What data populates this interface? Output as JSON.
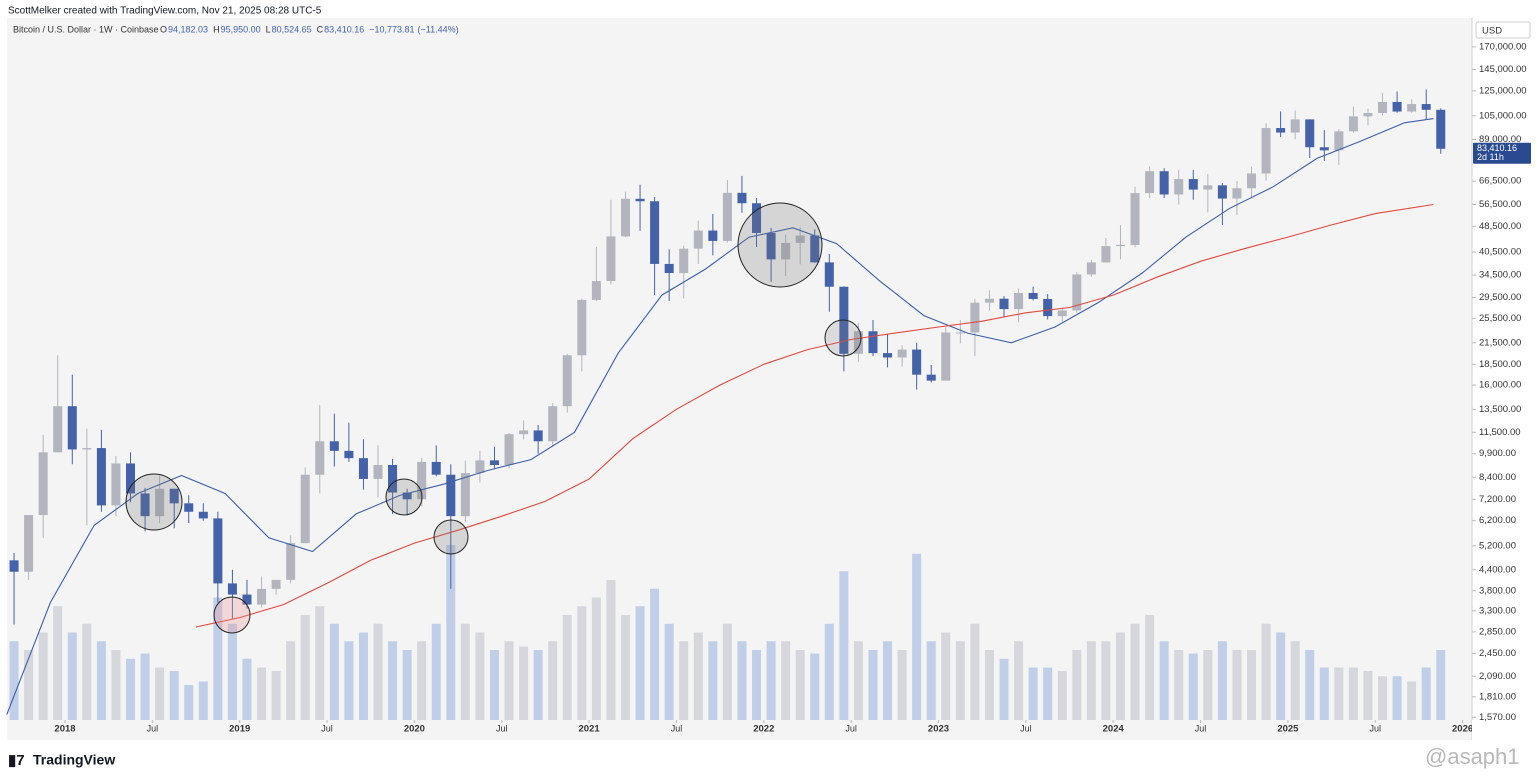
{
  "header": {
    "text": "ScottMelker created with TradingView.com, Nov 21, 2025 08:28 UTC-5"
  },
  "chart_data": {
    "type": "candlestick",
    "symbol": "Bitcoin / U.S. Dollar · 1W · Coinbase",
    "legend_ohlc": {
      "labels": [
        "O",
        "H",
        "L",
        "C"
      ],
      "values": [
        94182.03,
        95950,
        80524.65,
        83410.16
      ],
      "value_labels": [
        "94,182.03",
        "95,950.00",
        "80,524.65",
        "83,410.16"
      ]
    },
    "change": {
      "value": -10773.81,
      "label": "−10,773.81",
      "percent": -11.44,
      "percent_label": "(−11.44%)"
    },
    "currency": "USD",
    "last_price": {
      "value": 83410.16,
      "label": "83,410.16",
      "countdown": "2d 11h"
    },
    "log_scale": true,
    "up_color": "#b2b5be",
    "down_color": "#4562a8",
    "volume_up_color": "#cdd0d6",
    "volume_down_color": "#b3c5e4",
    "x": [
      "2017-09",
      "2017-10",
      "2017-11",
      "2017-12",
      "2018-01",
      "2018-02",
      "2018-03",
      "2018-04",
      "2018-05",
      "2018-06",
      "2018-07",
      "2018-08",
      "2018-09",
      "2018-10",
      "2018-11",
      "2018-12",
      "2019-01",
      "2019-02",
      "2019-03",
      "2019-04",
      "2019-05",
      "2019-06",
      "2019-07",
      "2019-08",
      "2019-09",
      "2019-10",
      "2019-11",
      "2019-12",
      "2020-01",
      "2020-02",
      "2020-03",
      "2020-04",
      "2020-05",
      "2020-06",
      "2020-07",
      "2020-08",
      "2020-09",
      "2020-10",
      "2020-11",
      "2020-12",
      "2021-01",
      "2021-02",
      "2021-03",
      "2021-04",
      "2021-05",
      "2021-06",
      "2021-07",
      "2021-08",
      "2021-09",
      "2021-10",
      "2021-11",
      "2021-12",
      "2022-01",
      "2022-02",
      "2022-03",
      "2022-04",
      "2022-05",
      "2022-06",
      "2022-07",
      "2022-08",
      "2022-09",
      "2022-10",
      "2022-11",
      "2022-12",
      "2023-01",
      "2023-02",
      "2023-03",
      "2023-04",
      "2023-05",
      "2023-06",
      "2023-07",
      "2023-08",
      "2023-09",
      "2023-10",
      "2023-11",
      "2023-12",
      "2024-01",
      "2024-02",
      "2024-03",
      "2024-04",
      "2024-05",
      "2024-06",
      "2024-07",
      "2024-08",
      "2024-09",
      "2024-10",
      "2024-11",
      "2024-12",
      "2025-01",
      "2025-02",
      "2025-03",
      "2025-04",
      "2025-05",
      "2025-06",
      "2025-07",
      "2025-08",
      "2025-09",
      "2025-10",
      "2025-11"
    ],
    "open": [
      4700,
      4340,
      6450,
      10000,
      13800,
      10200,
      10300,
      6900,
      9250,
      7500,
      6400,
      7750,
      7000,
      6600,
      6300,
      4000,
      3700,
      3450,
      3850,
      4100,
      5300,
      8550,
      10800,
      10100,
      9600,
      8300,
      9150,
      7550,
      7200,
      9350,
      8550,
      6400,
      8650,
      9450,
      9150,
      11350,
      11650,
      10800,
      13800,
      19700,
      29000,
      33100,
      45200,
      58800,
      57800,
      37300,
      35000,
      41500,
      47100,
      43800,
      61300,
      57000,
      46300,
      38500,
      43200,
      45500,
      37700,
      31800,
      19900,
      23300,
      20000,
      19400,
      20500,
      17200,
      16500,
      23100,
      23100,
      28450,
      29250,
      27200,
      30450,
      29200,
      25900,
      26950,
      34650,
      37700,
      42250,
      42600,
      61200,
      71300,
      60600,
      67500,
      62700,
      64600,
      58900,
      63300,
      70200,
      96400,
      93400,
      102400,
      84300,
      82500,
      94200,
      104600,
      107100,
      115700,
      108200,
      114000,
      109500
    ],
    "high": [
      4950,
      6450,
      11300,
      19700,
      17200,
      11800,
      11700,
      9750,
      10000,
      7800,
      8500,
      7750,
      7400,
      7000,
      6600,
      4400,
      4100,
      4200,
      4100,
      5600,
      9000,
      13900,
      13100,
      12300,
      10950,
      10500,
      9550,
      7750,
      9600,
      10500,
      9200,
      9450,
      10100,
      10400,
      11450,
      12500,
      12100,
      14100,
      19900,
      29300,
      42000,
      58400,
      61800,
      64900,
      59500,
      41300,
      42400,
      50500,
      52900,
      67000,
      69000,
      59100,
      48000,
      45800,
      48200,
      47500,
      40000,
      31900,
      24700,
      25200,
      22800,
      21100,
      21500,
      18400,
      23950,
      25200,
      29200,
      31000,
      29800,
      31400,
      31800,
      30200,
      27500,
      35200,
      38400,
      44700,
      48900,
      64000,
      73800,
      72800,
      72000,
      72000,
      70000,
      65600,
      66500,
      73600,
      99800,
      108300,
      109000,
      102500,
      95000,
      95700,
      111900,
      110500,
      123200,
      124500,
      117900,
      126200,
      110600
    ],
    "low": [
      3000,
      4100,
      5500,
      10900,
      9200,
      6000,
      6600,
      6400,
      7050,
      5750,
      6100,
      5880,
      6100,
      6200,
      3500,
      3120,
      3350,
      3380,
      3700,
      4000,
      5300,
      7500,
      9050,
      9350,
      7700,
      7300,
      6500,
      6430,
      6850,
      8450,
      3850,
      6150,
      8100,
      8900,
      8950,
      10950,
      9900,
      10400,
      13200,
      17600,
      28800,
      32300,
      45000,
      47000,
      30000,
      28800,
      29300,
      37300,
      39600,
      43300,
      53300,
      42000,
      32900,
      34300,
      37200,
      37600,
      26700,
      17600,
      18800,
      19600,
      18100,
      18200,
      15500,
      16300,
      16500,
      21400,
      19600,
      26900,
      25800,
      24800,
      28900,
      25300,
      24900,
      26550,
      34100,
      37600,
      38500,
      41900,
      59000,
      59100,
      56500,
      58400,
      53500,
      49000,
      52500,
      58900,
      66800,
      90500,
      89200,
      78200,
      76600,
      74400,
      93300,
      98200,
      105100,
      107300,
      107300,
      102000,
      80524.65
    ],
    "close": [
      4340,
      6450,
      10000,
      13800,
      10200,
      10300,
      6900,
      9250,
      7500,
      6400,
      7750,
      7000,
      6600,
      6300,
      4000,
      3700,
      3450,
      3850,
      4100,
      5300,
      8550,
      10800,
      10100,
      9600,
      8300,
      9150,
      7550,
      7200,
      9350,
      8550,
      6400,
      8650,
      9450,
      9150,
      11350,
      11650,
      10800,
      13800,
      19700,
      29000,
      33100,
      45200,
      58800,
      57800,
      37300,
      35000,
      41500,
      47100,
      43800,
      61300,
      57000,
      46300,
      38500,
      43200,
      45500,
      37700,
      31800,
      19900,
      23300,
      20000,
      19400,
      20500,
      17200,
      16500,
      23100,
      23100,
      28450,
      29250,
      27200,
      30450,
      29200,
      25900,
      26950,
      34650,
      37700,
      42250,
      42600,
      61200,
      71300,
      60600,
      67500,
      62700,
      64600,
      58900,
      63300,
      70200,
      96400,
      93400,
      102400,
      84300,
      82500,
      94200,
      104600,
      107100,
      115700,
      108200,
      114000,
      109500,
      83410.16
    ],
    "volume": [
      45,
      40,
      50,
      65,
      50,
      55,
      45,
      40,
      35,
      38,
      30,
      28,
      20,
      22,
      70,
      55,
      35,
      30,
      28,
      45,
      60,
      65,
      55,
      45,
      50,
      55,
      45,
      40,
      45,
      55,
      100,
      55,
      50,
      40,
      45,
      42,
      40,
      45,
      60,
      65,
      70,
      80,
      60,
      65,
      75,
      55,
      45,
      50,
      45,
      55,
      45,
      40,
      45,
      45,
      40,
      38,
      55,
      85,
      45,
      40,
      45,
      40,
      95,
      45,
      50,
      45,
      55,
      40,
      35,
      45,
      30,
      30,
      28,
      40,
      45,
      45,
      50,
      55,
      60,
      45,
      40,
      38,
      40,
      45,
      40,
      40,
      55,
      50,
      45,
      40,
      30,
      30,
      30,
      28,
      25,
      25,
      22,
      30,
      40
    ],
    "overlays": [
      {
        "color": "#3f5fa8",
        "x": [
          "2017-09",
          "2017-12",
          "2018-03",
          "2018-06",
          "2018-09",
          "2018-12",
          "2019-03",
          "2019-06",
          "2019-09",
          "2019-12",
          "2020-03",
          "2020-06",
          "2020-09",
          "2020-12",
          "2021-03",
          "2021-06",
          "2021-09",
          "2021-12",
          "2022-03",
          "2022-06",
          "2022-09",
          "2022-12",
          "2023-03",
          "2023-06",
          "2023-09",
          "2023-12",
          "2024-03",
          "2024-06",
          "2024-09",
          "2024-12",
          "2025-03",
          "2025-06",
          "2025-09",
          "2025-11"
        ],
        "values": [
          1600,
          3500,
          6000,
          7500,
          8500,
          7500,
          5500,
          5000,
          6500,
          7400,
          8000,
          8800,
          9500,
          11500,
          20000,
          30000,
          36000,
          45000,
          48000,
          43000,
          33000,
          26000,
          23000,
          21500,
          24000,
          28500,
          35000,
          45000,
          55000,
          64000,
          78000,
          88000,
          100000,
          103000
        ]
      },
      {
        "color": "#e2493f",
        "x": [
          "2018-10",
          "2019-01",
          "2019-04",
          "2019-07",
          "2019-10",
          "2020-01",
          "2020-04",
          "2020-07",
          "2020-10",
          "2021-01",
          "2021-04",
          "2021-07",
          "2021-10",
          "2022-01",
          "2022-04",
          "2022-07",
          "2022-10",
          "2023-01",
          "2023-04",
          "2023-07",
          "2023-10",
          "2024-01",
          "2024-04",
          "2024-07",
          "2024-10",
          "2025-01",
          "2025-04",
          "2025-07",
          "2025-11"
        ],
        "values": [
          2950,
          3150,
          3450,
          4000,
          4700,
          5300,
          5800,
          6400,
          7100,
          8300,
          11000,
          13500,
          16000,
          18500,
          20500,
          22000,
          23000,
          24000,
          25000,
          26500,
          27500,
          30000,
          34000,
          38000,
          41500,
          45000,
          49000,
          53000,
          56500
        ]
      }
    ],
    "ylim": [
      1540,
      208000
    ],
    "yticks": [
      {
        "value": 170000,
        "label": "170,000.00"
      },
      {
        "value": 145000,
        "label": "145,000.00"
      },
      {
        "value": 125000,
        "label": "125,000.00"
      },
      {
        "value": 105000,
        "label": "105,000.00"
      },
      {
        "value": 89000,
        "label": "89,000.00"
      },
      {
        "value": 66500,
        "label": "66,500.00"
      },
      {
        "value": 56500,
        "label": "56,500.00"
      },
      {
        "value": 48500,
        "label": "48,500.00"
      },
      {
        "value": 40500,
        "label": "40,500.00"
      },
      {
        "value": 34500,
        "label": "34,500.00"
      },
      {
        "value": 29500,
        "label": "29,500.00"
      },
      {
        "value": 25500,
        "label": "25,500.00"
      },
      {
        "value": 21500,
        "label": "21,500.00"
      },
      {
        "value": 18500,
        "label": "18,500.00"
      },
      {
        "value": 16000,
        "label": "16,000.00"
      },
      {
        "value": 13500,
        "label": "13,500.00"
      },
      {
        "value": 11500,
        "label": "11,500.00"
      },
      {
        "value": 9900,
        "label": "9,900.00"
      },
      {
        "value": 8400,
        "label": "8,400.00"
      },
      {
        "value": 7200,
        "label": "7,200.00"
      },
      {
        "value": 6200,
        "label": "6,200.00"
      },
      {
        "value": 5200,
        "label": "5,200.00"
      },
      {
        "value": 4400,
        "label": "4,400.00"
      },
      {
        "value": 3800,
        "label": "3,800.00"
      },
      {
        "value": 3300,
        "label": "3,300.00"
      },
      {
        "value": 2850,
        "label": "2,850.00"
      },
      {
        "value": 2450,
        "label": "2,450.00"
      },
      {
        "value": 2090,
        "label": "2,090.00"
      },
      {
        "value": 1810,
        "label": "1,810.00"
      },
      {
        "value": 1570,
        "label": "1,570.00"
      }
    ],
    "xticks": [
      {
        "value": "2018-01",
        "label": "2018"
      },
      {
        "value": "2018-07",
        "label": "Jul"
      },
      {
        "value": "2019-01",
        "label": "2019"
      },
      {
        "value": "2019-07",
        "label": "Jul"
      },
      {
        "value": "2020-01",
        "label": "2020"
      },
      {
        "value": "2020-07",
        "label": "Jul"
      },
      {
        "value": "2021-01",
        "label": "2021"
      },
      {
        "value": "2021-07",
        "label": "Jul"
      },
      {
        "value": "2022-01",
        "label": "2022"
      },
      {
        "value": "2022-07",
        "label": "Jul"
      },
      {
        "value": "2023-01",
        "label": "2023"
      },
      {
        "value": "2023-07",
        "label": "Jul"
      },
      {
        "value": "2024-01",
        "label": "2024"
      },
      {
        "value": "2024-07",
        "label": "Jul"
      },
      {
        "value": "2025-01",
        "label": "2025"
      },
      {
        "value": "2025-07",
        "label": "Jul"
      },
      {
        "value": "2026-01",
        "label": "2026"
      }
    ]
  },
  "footer": {
    "brand": "TradingView",
    "watermark": "@asaph1"
  }
}
